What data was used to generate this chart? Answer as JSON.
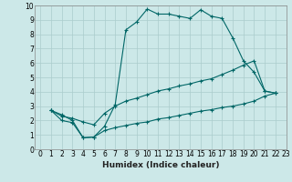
{
  "xlabel": "Humidex (Indice chaleur)",
  "background_color": "#cce8e8",
  "grid_color": "#aacccc",
  "line_color": "#006666",
  "xlim": [
    -0.5,
    23
  ],
  "ylim": [
    0,
    10
  ],
  "xticks": [
    0,
    1,
    2,
    3,
    4,
    5,
    6,
    7,
    8,
    9,
    10,
    11,
    12,
    13,
    14,
    15,
    16,
    17,
    18,
    19,
    20,
    21,
    22,
    23
  ],
  "yticks": [
    0,
    1,
    2,
    3,
    4,
    5,
    6,
    7,
    8,
    9,
    10
  ],
  "line1_x": [
    1,
    2,
    3,
    4,
    5,
    6,
    7,
    8,
    9,
    10,
    11,
    12,
    13,
    14,
    15,
    16,
    17,
    18,
    19,
    20,
    21,
    22
  ],
  "line1_y": [
    2.7,
    2.4,
    2.0,
    0.8,
    0.85,
    1.6,
    3.1,
    8.3,
    8.85,
    9.75,
    9.4,
    9.4,
    9.25,
    9.1,
    9.7,
    9.25,
    9.1,
    7.75,
    6.15,
    5.35,
    4.05,
    3.9
  ],
  "line2_x": [
    1,
    2,
    3,
    4,
    5,
    6,
    7,
    8,
    9,
    10,
    11,
    12,
    13,
    14,
    15,
    16,
    17,
    18,
    19,
    20,
    21,
    22
  ],
  "line2_y": [
    2.7,
    2.3,
    2.15,
    1.9,
    1.7,
    2.5,
    3.0,
    3.35,
    3.55,
    3.8,
    4.05,
    4.2,
    4.4,
    4.55,
    4.75,
    4.9,
    5.2,
    5.5,
    5.85,
    6.15,
    4.05,
    3.9
  ],
  "line3_x": [
    1,
    2,
    3,
    4,
    5,
    6,
    7,
    8,
    9,
    10,
    11,
    12,
    13,
    14,
    15,
    16,
    17,
    18,
    19,
    20,
    21,
    22
  ],
  "line3_y": [
    2.7,
    2.0,
    1.85,
    0.8,
    0.85,
    1.3,
    1.5,
    1.65,
    1.8,
    1.9,
    2.1,
    2.2,
    2.35,
    2.5,
    2.65,
    2.75,
    2.9,
    3.0,
    3.15,
    3.35,
    3.7,
    3.9
  ],
  "tick_fontsize": 5.5,
  "xlabel_fontsize": 6.5
}
